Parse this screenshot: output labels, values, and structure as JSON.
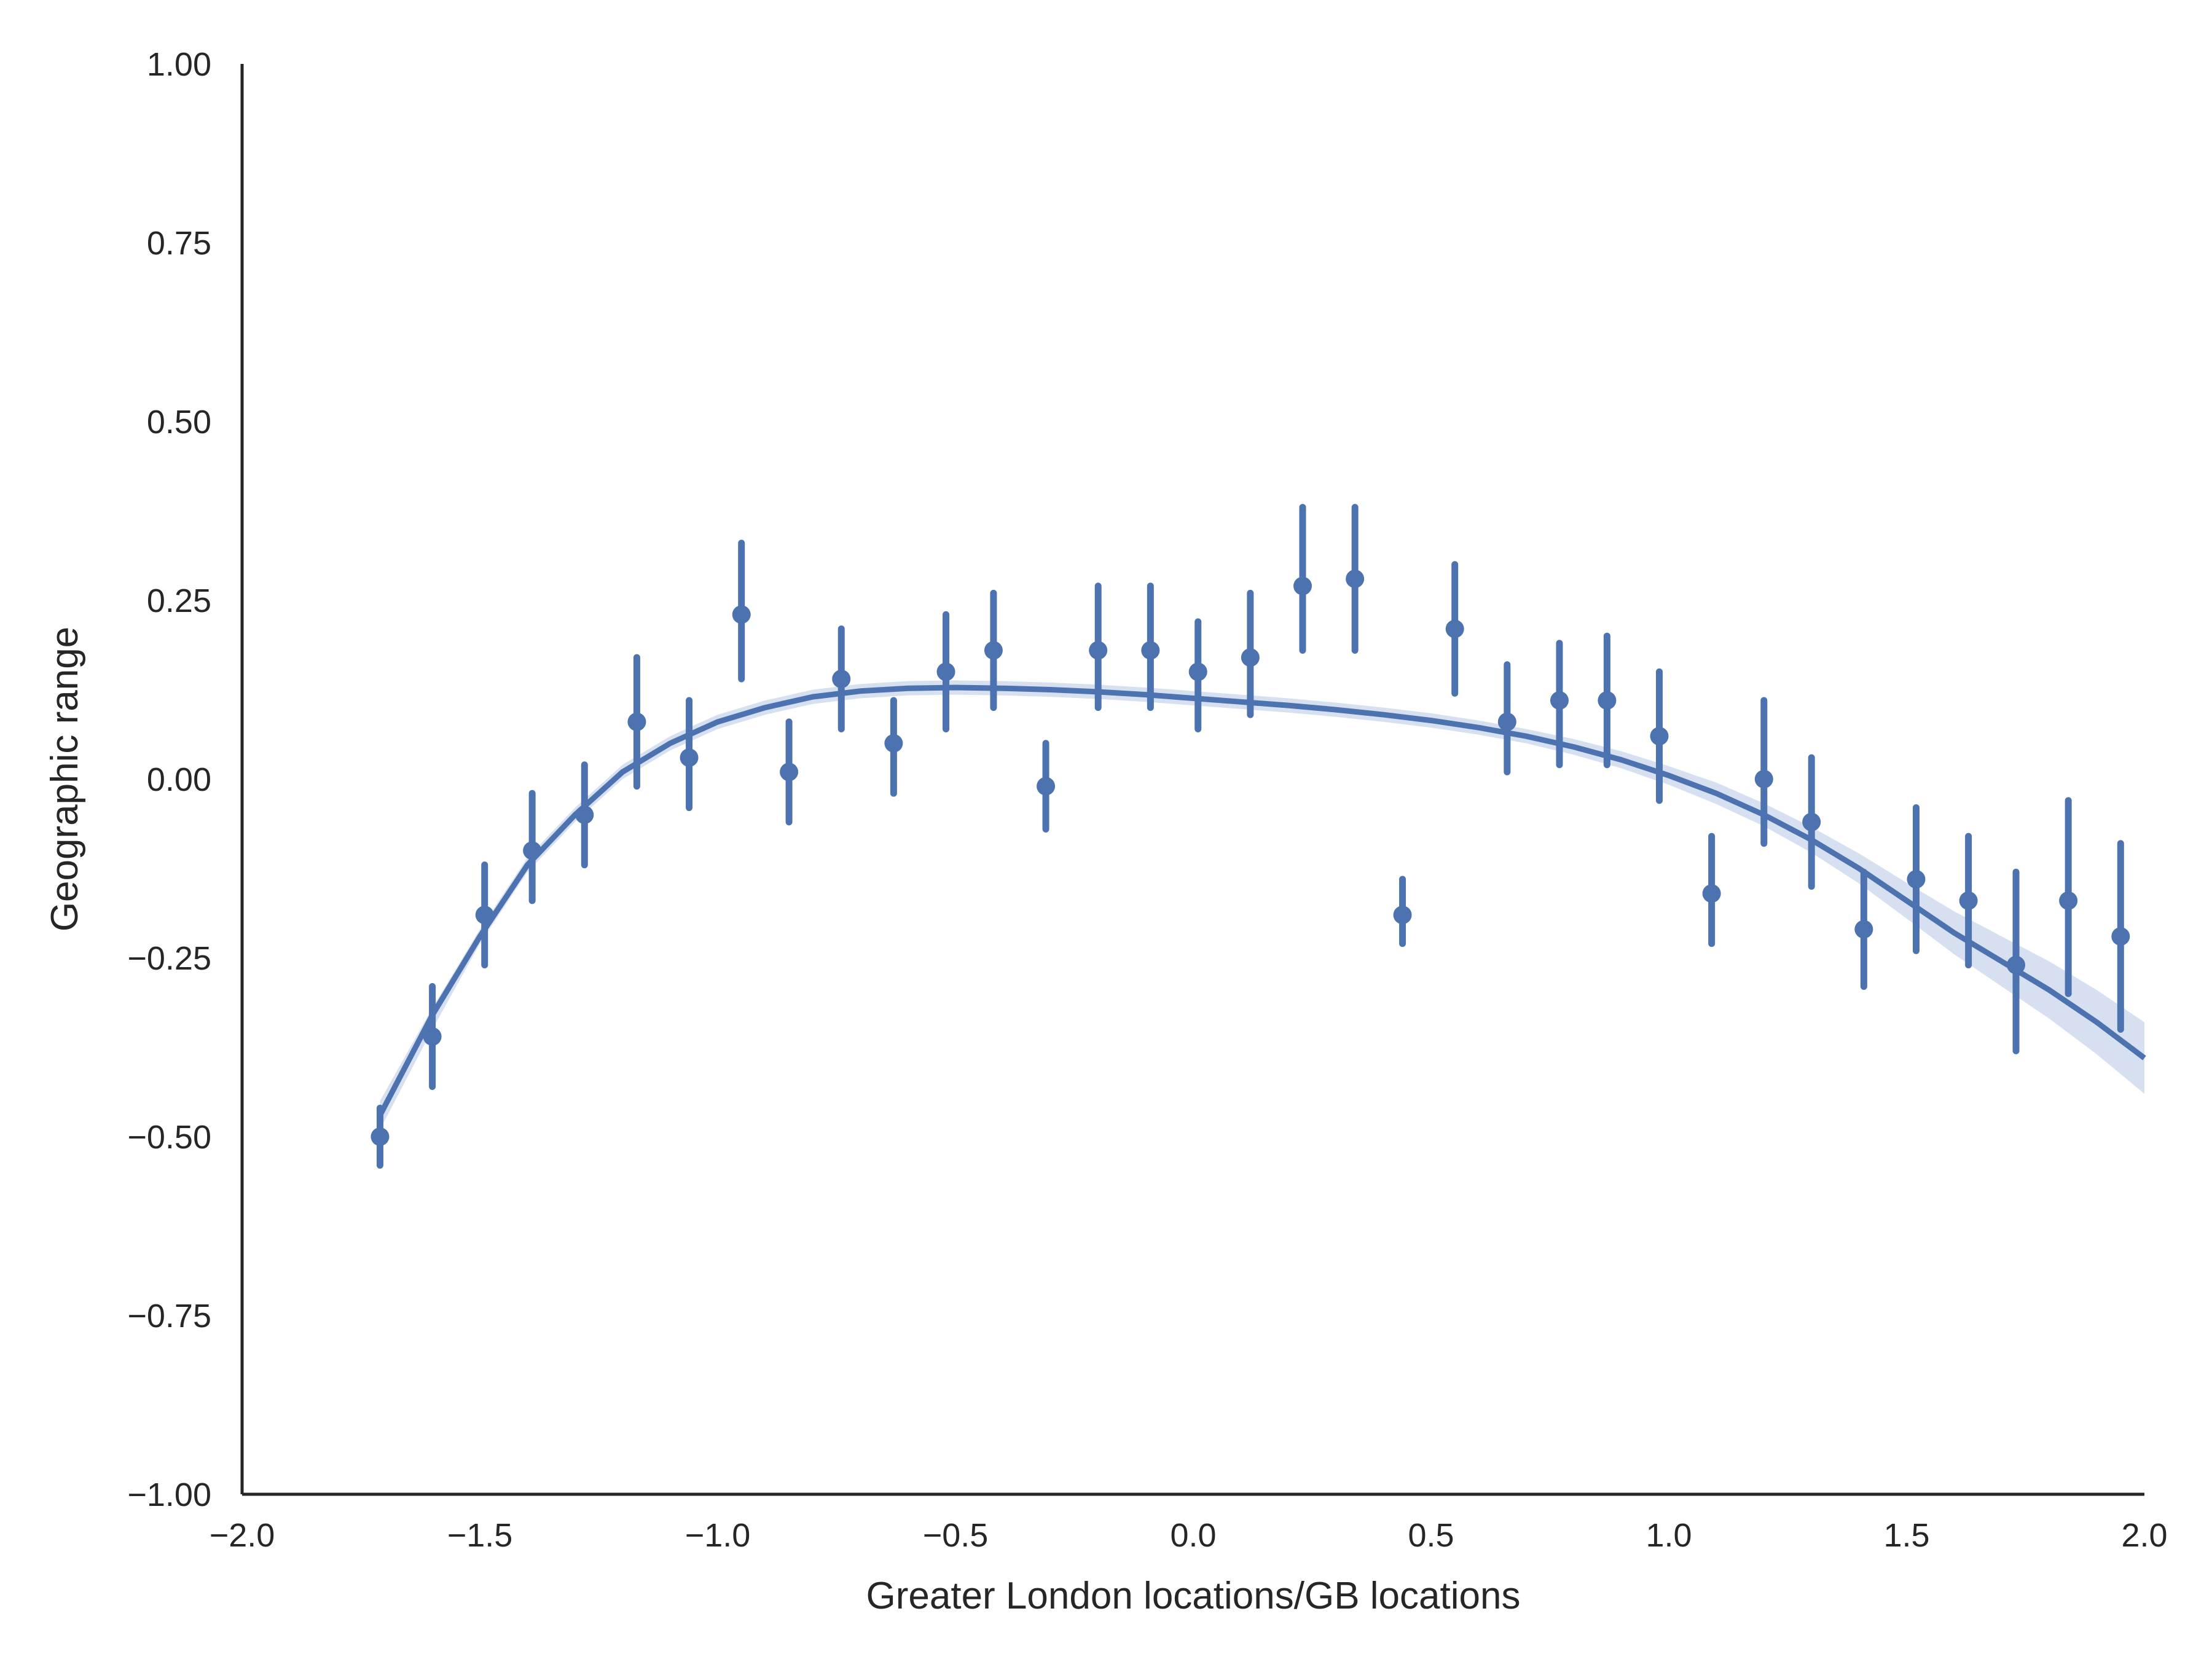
{
  "chart_data": {
    "type": "scatter",
    "title": "",
    "xlabel": "Greater London locations/GB locations",
    "ylabel": "Geographic range",
    "xlim": [
      -2.0,
      2.0
    ],
    "ylim": [
      -1.0,
      1.0
    ],
    "xticks": [
      -2.0,
      -1.5,
      -1.0,
      -0.5,
      0.0,
      0.5,
      1.0,
      1.5,
      2.0
    ],
    "xtick_labels": [
      "−2.0",
      "−1.5",
      "−1.0",
      "−0.5",
      "0.0",
      "0.5",
      "1.0",
      "1.5",
      "2.0"
    ],
    "yticks": [
      1.0,
      0.75,
      0.5,
      0.25,
      0.0,
      -0.25,
      -0.5,
      -0.75,
      -1.0
    ],
    "ytick_labels": [
      "1.00",
      "0.75",
      "0.50",
      "0.25",
      "0.00",
      "−0.25",
      "−0.50",
      "−0.75",
      "−1.00"
    ],
    "grid": false,
    "color": "#4c72b0",
    "band_color": "#d7e0f0",
    "axis_color": "#262626",
    "points": [
      {
        "x": -1.71,
        "y": -0.5,
        "lo": -0.54,
        "hi": -0.46
      },
      {
        "x": -1.6,
        "y": -0.36,
        "lo": -0.43,
        "hi": -0.29
      },
      {
        "x": -1.49,
        "y": -0.19,
        "lo": -0.26,
        "hi": -0.12
      },
      {
        "x": -1.39,
        "y": -0.1,
        "lo": -0.17,
        "hi": -0.02
      },
      {
        "x": -1.28,
        "y": -0.05,
        "lo": -0.12,
        "hi": 0.02
      },
      {
        "x": -1.17,
        "y": 0.08,
        "lo": -0.01,
        "hi": 0.17
      },
      {
        "x": -1.06,
        "y": 0.03,
        "lo": -0.04,
        "hi": 0.11
      },
      {
        "x": -0.95,
        "y": 0.23,
        "lo": 0.14,
        "hi": 0.33
      },
      {
        "x": -0.85,
        "y": 0.01,
        "lo": -0.06,
        "hi": 0.08
      },
      {
        "x": -0.74,
        "y": 0.14,
        "lo": 0.07,
        "hi": 0.21
      },
      {
        "x": -0.63,
        "y": 0.05,
        "lo": -0.02,
        "hi": 0.11
      },
      {
        "x": -0.52,
        "y": 0.15,
        "lo": 0.07,
        "hi": 0.23
      },
      {
        "x": -0.42,
        "y": 0.18,
        "lo": 0.1,
        "hi": 0.26
      },
      {
        "x": -0.31,
        "y": -0.01,
        "lo": -0.07,
        "hi": 0.05
      },
      {
        "x": -0.2,
        "y": 0.18,
        "lo": 0.1,
        "hi": 0.27
      },
      {
        "x": -0.09,
        "y": 0.18,
        "lo": 0.1,
        "hi": 0.27
      },
      {
        "x": 0.01,
        "y": 0.15,
        "lo": 0.07,
        "hi": 0.22
      },
      {
        "x": 0.12,
        "y": 0.17,
        "lo": 0.09,
        "hi": 0.26
      },
      {
        "x": 0.23,
        "y": 0.27,
        "lo": 0.18,
        "hi": 0.38
      },
      {
        "x": 0.34,
        "y": 0.28,
        "lo": 0.18,
        "hi": 0.38
      },
      {
        "x": 0.44,
        "y": -0.19,
        "lo": -0.23,
        "hi": -0.14
      },
      {
        "x": 0.55,
        "y": 0.21,
        "lo": 0.12,
        "hi": 0.3
      },
      {
        "x": 0.66,
        "y": 0.08,
        "lo": 0.01,
        "hi": 0.16
      },
      {
        "x": 0.77,
        "y": 0.11,
        "lo": 0.02,
        "hi": 0.19
      },
      {
        "x": 0.87,
        "y": 0.11,
        "lo": 0.02,
        "hi": 0.2
      },
      {
        "x": 0.98,
        "y": 0.06,
        "lo": -0.03,
        "hi": 0.15
      },
      {
        "x": 1.09,
        "y": -0.16,
        "lo": -0.23,
        "hi": -0.08
      },
      {
        "x": 1.2,
        "y": 0.0,
        "lo": -0.09,
        "hi": 0.11
      },
      {
        "x": 1.3,
        "y": -0.06,
        "lo": -0.15,
        "hi": 0.03
      },
      {
        "x": 1.41,
        "y": -0.21,
        "lo": -0.29,
        "hi": -0.13
      },
      {
        "x": 1.52,
        "y": -0.14,
        "lo": -0.24,
        "hi": -0.04
      },
      {
        "x": 1.63,
        "y": -0.17,
        "lo": -0.26,
        "hi": -0.08
      },
      {
        "x": 1.73,
        "y": -0.26,
        "lo": -0.38,
        "hi": -0.13
      },
      {
        "x": 1.84,
        "y": -0.17,
        "lo": -0.3,
        "hi": -0.03
      },
      {
        "x": 1.95,
        "y": -0.22,
        "lo": -0.35,
        "hi": -0.09
      }
    ],
    "fit_curve": [
      {
        "x": -1.71,
        "y": -0.47,
        "lo": -0.49,
        "hi": -0.45
      },
      {
        "x": -1.6,
        "y": -0.33,
        "lo": -0.35,
        "hi": -0.32
      },
      {
        "x": -1.5,
        "y": -0.22,
        "lo": -0.23,
        "hi": -0.21
      },
      {
        "x": -1.4,
        "y": -0.12,
        "lo": -0.13,
        "hi": -0.11
      },
      {
        "x": -1.3,
        "y": -0.05,
        "lo": -0.06,
        "hi": -0.04
      },
      {
        "x": -1.2,
        "y": 0.01,
        "lo": 0.0,
        "hi": 0.02
      },
      {
        "x": -1.1,
        "y": 0.05,
        "lo": 0.04,
        "hi": 0.06
      },
      {
        "x": -1.0,
        "y": 0.08,
        "lo": 0.07,
        "hi": 0.09
      },
      {
        "x": -0.9,
        "y": 0.1,
        "lo": 0.09,
        "hi": 0.11
      },
      {
        "x": -0.8,
        "y": 0.115,
        "lo": 0.105,
        "hi": 0.125
      },
      {
        "x": -0.7,
        "y": 0.123,
        "lo": 0.113,
        "hi": 0.133
      },
      {
        "x": -0.6,
        "y": 0.127,
        "lo": 0.117,
        "hi": 0.137
      },
      {
        "x": -0.5,
        "y": 0.128,
        "lo": 0.118,
        "hi": 0.138
      },
      {
        "x": -0.4,
        "y": 0.127,
        "lo": 0.117,
        "hi": 0.137
      },
      {
        "x": -0.3,
        "y": 0.125,
        "lo": 0.115,
        "hi": 0.135
      },
      {
        "x": -0.2,
        "y": 0.122,
        "lo": 0.112,
        "hi": 0.132
      },
      {
        "x": -0.1,
        "y": 0.118,
        "lo": 0.108,
        "hi": 0.128
      },
      {
        "x": 0.0,
        "y": 0.113,
        "lo": 0.103,
        "hi": 0.123
      },
      {
        "x": 0.1,
        "y": 0.108,
        "lo": 0.098,
        "hi": 0.118
      },
      {
        "x": 0.2,
        "y": 0.103,
        "lo": 0.093,
        "hi": 0.113
      },
      {
        "x": 0.3,
        "y": 0.097,
        "lo": 0.087,
        "hi": 0.107
      },
      {
        "x": 0.4,
        "y": 0.09,
        "lo": 0.08,
        "hi": 0.1
      },
      {
        "x": 0.5,
        "y": 0.082,
        "lo": 0.072,
        "hi": 0.092
      },
      {
        "x": 0.6,
        "y": 0.072,
        "lo": 0.062,
        "hi": 0.082
      },
      {
        "x": 0.7,
        "y": 0.06,
        "lo": 0.05,
        "hi": 0.07
      },
      {
        "x": 0.8,
        "y": 0.045,
        "lo": 0.034,
        "hi": 0.056
      },
      {
        "x": 0.9,
        "y": 0.027,
        "lo": 0.015,
        "hi": 0.039
      },
      {
        "x": 1.0,
        "y": 0.005,
        "lo": -0.008,
        "hi": 0.018
      },
      {
        "x": 1.1,
        "y": -0.02,
        "lo": -0.035,
        "hi": -0.005
      },
      {
        "x": 1.2,
        "y": -0.05,
        "lo": -0.066,
        "hi": -0.034
      },
      {
        "x": 1.3,
        "y": -0.085,
        "lo": -0.103,
        "hi": -0.067
      },
      {
        "x": 1.4,
        "y": -0.125,
        "lo": -0.146,
        "hi": -0.104
      },
      {
        "x": 1.5,
        "y": -0.17,
        "lo": -0.195,
        "hi": -0.145
      },
      {
        "x": 1.6,
        "y": -0.215,
        "lo": -0.245,
        "hi": -0.185
      },
      {
        "x": 1.7,
        "y": -0.255,
        "lo": -0.29,
        "hi": -0.22
      },
      {
        "x": 1.8,
        "y": -0.295,
        "lo": -0.335,
        "hi": -0.255
      },
      {
        "x": 1.9,
        "y": -0.34,
        "lo": -0.385,
        "hi": -0.295
      },
      {
        "x": 2.0,
        "y": -0.39,
        "lo": -0.44,
        "hi": -0.34
      }
    ]
  }
}
